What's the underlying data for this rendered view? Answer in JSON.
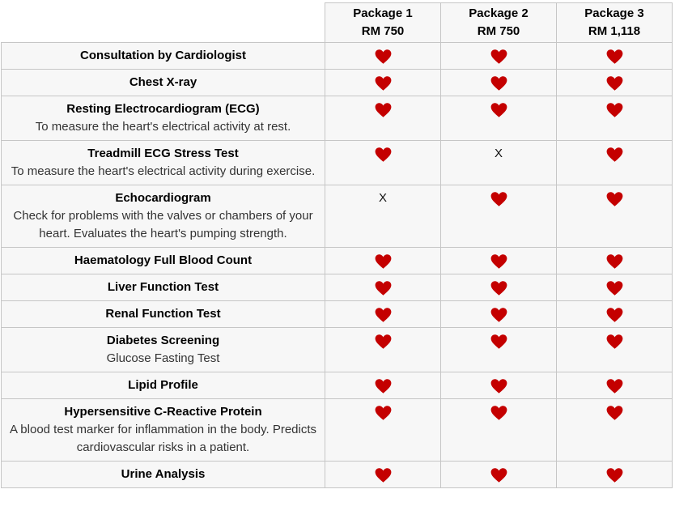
{
  "table": {
    "columns": [
      {
        "name": "Package 1",
        "price": "RM 750"
      },
      {
        "name": "Package 2",
        "price": "RM 750"
      },
      {
        "name": "Package 3",
        "price": "RM 1,118"
      }
    ],
    "x_symbol": "X",
    "mark_meanings": {
      "heart": "included",
      "x": "not included"
    },
    "rows": [
      {
        "title": "Consultation by Cardiologist",
        "description": "",
        "marks": [
          "heart",
          "heart",
          "heart"
        ]
      },
      {
        "title": "Chest X-ray",
        "description": "",
        "marks": [
          "heart",
          "heart",
          "heart"
        ]
      },
      {
        "title": "Resting Electrocardiogram (ECG)",
        "description": "To measure the heart's electrical activity at rest.",
        "marks": [
          "heart",
          "heart",
          "heart"
        ]
      },
      {
        "title": "Treadmill ECG Stress Test",
        "description": "To measure the heart's electrical activity during exercise.",
        "marks": [
          "heart",
          "x",
          "heart"
        ]
      },
      {
        "title": "Echocardiogram",
        "description": "Check for problems with the valves or chambers of your heart. Evaluates the heart's pumping strength.",
        "marks": [
          "x",
          "heart",
          "heart"
        ]
      },
      {
        "title": "Haematology Full Blood Count",
        "description": "",
        "marks": [
          "heart",
          "heart",
          "heart"
        ]
      },
      {
        "title": "Liver Function Test",
        "description": "",
        "marks": [
          "heart",
          "heart",
          "heart"
        ]
      },
      {
        "title": "Renal Function Test",
        "description": "",
        "marks": [
          "heart",
          "heart",
          "heart"
        ]
      },
      {
        "title": "Diabetes Screening",
        "description": "Glucose Fasting Test",
        "marks": [
          "heart",
          "heart",
          "heart"
        ]
      },
      {
        "title": "Lipid Profile",
        "description": "",
        "marks": [
          "heart",
          "heart",
          "heart"
        ]
      },
      {
        "title": "Hypersensitive C-Reactive Protein",
        "description": "A blood test marker for inflammation in the body. Predicts cardiovascular risks in a patient.",
        "marks": [
          "heart",
          "heart",
          "heart"
        ]
      },
      {
        "title": "Urine Analysis",
        "description": "",
        "marks": [
          "heart",
          "heart",
          "heart"
        ]
      }
    ],
    "colors": {
      "heart": "#c40000",
      "border": "#c6c6c6",
      "cell_bg": "#f7f7f7",
      "title_text": "#000000",
      "description_text": "#333333"
    }
  }
}
